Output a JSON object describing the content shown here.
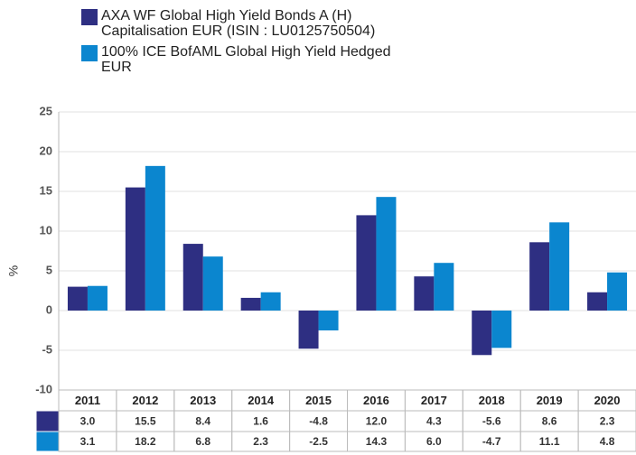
{
  "chart_data": {
    "type": "bar",
    "categories": [
      "2011",
      "2012",
      "2013",
      "2014",
      "2015",
      "2016",
      "2017",
      "2018",
      "2019",
      "2020"
    ],
    "series": [
      {
        "name": "AXA WF Global High Yield Bonds A (H) Capitalisation EUR (ISIN : LU0125750504)",
        "color": "#2e2f82",
        "values": [
          3.0,
          15.5,
          8.4,
          1.6,
          -4.8,
          12.0,
          4.3,
          -5.6,
          8.6,
          2.3
        ],
        "value_labels": [
          "3.0",
          "15.5",
          "8.4",
          "1.6",
          "-4.8",
          "12.0",
          "4.3",
          "-5.6",
          "8.6",
          "2.3"
        ]
      },
      {
        "name": "100% ICE BofAML Global High Yield Hedged EUR",
        "color": "#0b86cf",
        "values": [
          3.1,
          18.2,
          6.8,
          2.3,
          -2.5,
          14.3,
          6.0,
          -4.7,
          11.1,
          4.8
        ],
        "value_labels": [
          "3.1",
          "18.2",
          "6.8",
          "2.3",
          "-2.5",
          "14.3",
          "6.0",
          "-4.7",
          "11.1",
          "4.8"
        ]
      }
    ],
    "y_label": "%",
    "ylim": [
      -10,
      25
    ],
    "yticks": [
      -10,
      -5,
      0,
      5,
      10,
      15,
      20,
      25
    ],
    "grid": true
  }
}
